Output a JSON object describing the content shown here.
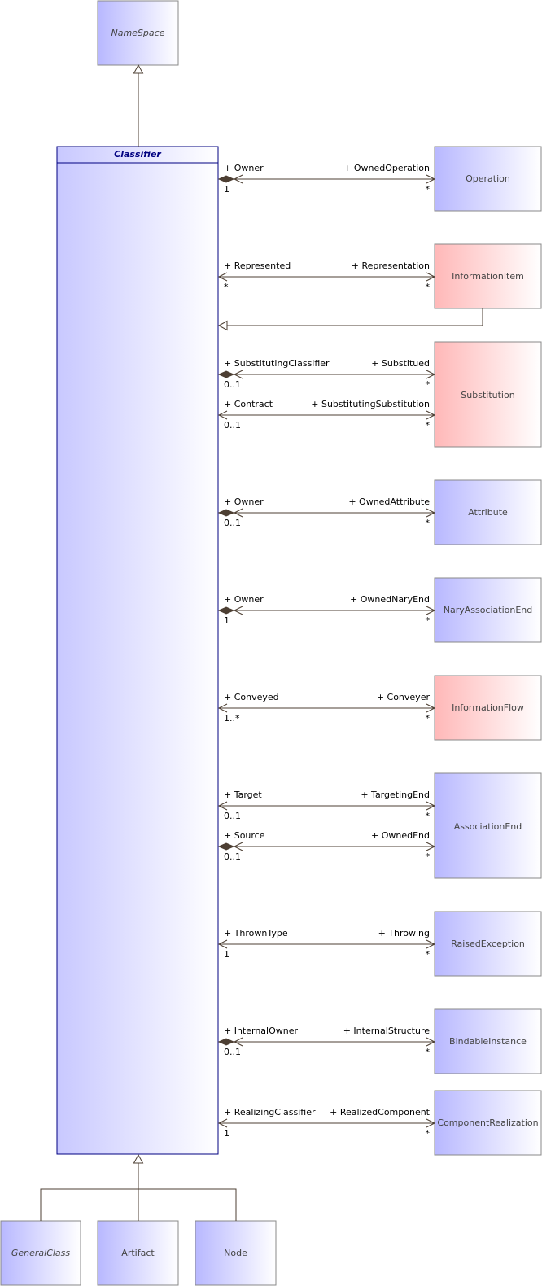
{
  "colors": {
    "blue_fill_start": "#b8b8ff",
    "red_fill_start": "#ffb8b8",
    "fill_end": "#ffffff",
    "box_border": "#888888",
    "classifier_border": "#000080",
    "line": "#4d3f33"
  },
  "classes": {
    "namespace": {
      "label": "NameSpace",
      "italic": true,
      "color": "blue"
    },
    "classifier": {
      "label": "Classifier",
      "abstract": true
    },
    "operation": {
      "label": "Operation",
      "color": "blue"
    },
    "information_item": {
      "label": "InformationItem",
      "color": "red"
    },
    "substitution": {
      "label": "Substitution",
      "color": "red"
    },
    "attribute": {
      "label": "Attribute",
      "color": "blue"
    },
    "nary_association_end": {
      "label": "NaryAssociationEnd",
      "color": "blue"
    },
    "information_flow": {
      "label": "InformationFlow",
      "color": "red"
    },
    "association_end": {
      "label": "AssociationEnd",
      "color": "blue"
    },
    "raised_exception": {
      "label": "RaisedException",
      "color": "blue"
    },
    "bindable_instance": {
      "label": "BindableInstance",
      "color": "blue"
    },
    "component_realization": {
      "label": "ComponentRealization",
      "color": "blue"
    },
    "general_class": {
      "label": "GeneralClass",
      "italic": true,
      "color": "blue"
    },
    "artifact": {
      "label": "Artifact",
      "color": "blue"
    },
    "node": {
      "label": "Node",
      "color": "blue"
    }
  },
  "associations": [
    {
      "left_role": "+ Owner",
      "right_role": "+ OwnedOperation",
      "left_mult": "1",
      "right_mult": "*",
      "composite": true
    },
    {
      "left_role": "+ Represented",
      "right_role": "+ Representation",
      "left_mult": "*",
      "right_mult": "*",
      "composite": false
    },
    {
      "left_role": "+ SubstitutingClassifier",
      "right_role": "+ Substitued",
      "left_mult": "0..1",
      "right_mult": "*",
      "composite": true
    },
    {
      "left_role": "+ Contract",
      "right_role": "+ SubstitutingSubstitution",
      "left_mult": "0..1",
      "right_mult": "*",
      "composite": false
    },
    {
      "left_role": "+ Owner",
      "right_role": "+ OwnedAttribute",
      "left_mult": "0..1",
      "right_mult": "*",
      "composite": true
    },
    {
      "left_role": "+ Owner",
      "right_role": "+ OwnedNaryEnd",
      "left_mult": "1",
      "right_mult": "*",
      "composite": true
    },
    {
      "left_role": "+ Conveyed",
      "right_role": "+ Conveyer",
      "left_mult": "1..*",
      "right_mult": "*",
      "composite": false
    },
    {
      "left_role": "+ Target",
      "right_role": "+ TargetingEnd",
      "left_mult": "0..1",
      "right_mult": "*",
      "composite": false
    },
    {
      "left_role": "+ Source",
      "right_role": "+ OwnedEnd",
      "left_mult": "0..1",
      "right_mult": "*",
      "composite": true
    },
    {
      "left_role": "+ ThrownType",
      "right_role": "+ Throwing",
      "left_mult": "1",
      "right_mult": "*",
      "composite": false
    },
    {
      "left_role": "+ InternalOwner",
      "right_role": "+ InternalStructure",
      "left_mult": "0..1",
      "right_mult": "*",
      "composite": true
    },
    {
      "left_role": "+ RealizingClassifier",
      "right_role": "+ RealizedComponent",
      "left_mult": "1",
      "right_mult": "*",
      "composite": false
    }
  ]
}
